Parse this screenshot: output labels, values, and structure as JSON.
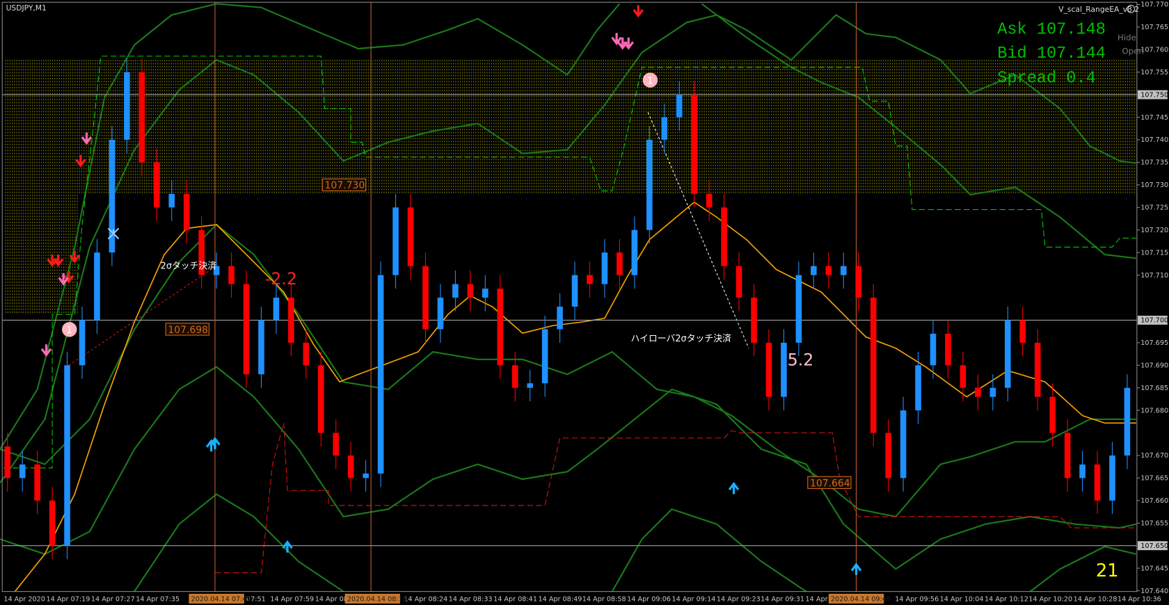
{
  "header": {
    "symbol": "USDJPY,M1",
    "ea_name": "V_scal_RangeEA_v8.2"
  },
  "quote": {
    "ask": "Ask 107.148",
    "bid": "Bid 107.144",
    "spread": "Spread 0.4"
  },
  "buttons": [
    "Hide",
    "Open"
  ],
  "chart_data": {
    "type": "candlestick",
    "ylim": [
      107.64,
      107.77
    ],
    "yticks": [
      {
        "value": 107.77,
        "label": "107.770"
      },
      {
        "value": 107.765,
        "label": "107.765"
      },
      {
        "value": 107.76,
        "label": "107.760"
      },
      {
        "value": 107.755,
        "label": "107.755"
      },
      {
        "value": 107.745,
        "label": "107.745"
      },
      {
        "value": 107.74,
        "label": "107.740"
      },
      {
        "value": 107.735,
        "label": "107.735"
      },
      {
        "value": 107.73,
        "label": "107.730"
      },
      {
        "value": 107.725,
        "label": "107.725"
      },
      {
        "value": 107.72,
        "label": "107.720"
      },
      {
        "value": 107.715,
        "label": "107.715"
      },
      {
        "value": 107.71,
        "label": "107.710"
      },
      {
        "value": 107.695,
        "label": "107.695"
      },
      {
        "value": 107.69,
        "label": "107.690"
      },
      {
        "value": 107.685,
        "label": "107.685"
      },
      {
        "value": 107.68,
        "label": "107.680"
      },
      {
        "value": 107.67,
        "label": "107.670"
      },
      {
        "value": 107.665,
        "label": "107.665"
      },
      {
        "value": 107.66,
        "label": "107.660"
      },
      {
        "value": 107.655,
        "label": "107.655"
      },
      {
        "value": 107.645,
        "label": "107.645"
      },
      {
        "value": 107.64,
        "label": "107.640"
      }
    ],
    "levels": [
      {
        "value": 107.75,
        "label": "107.750"
      },
      {
        "value": 107.7,
        "label": "107.700"
      },
      {
        "value": 107.65,
        "label": "107.650"
      }
    ],
    "x_labels": [
      "14 Apr 2020",
      "14 Apr 07:19",
      "14 Apr 07:27",
      "14 Apr 07:35",
      "07:51",
      "14 Apr 07:59",
      "14 Apr 08",
      "14 Apr 08:24",
      "14 Apr 08:33",
      "14 Apr 08:41",
      "14 Apr 08:49",
      "14 Apr 08:58",
      "14 Apr 09:06",
      "14 Apr 09:14",
      "14 Apr 09:23",
      "14 Apr 09:31",
      "14 Apr",
      "14 Apr 09:56",
      "14 Apr 10:04",
      "14 Apr 10:12",
      "14 Apr 10:20",
      "14 Apr 10:28",
      "14 Apr 10:36"
    ],
    "time_markers": [
      "2020.04.14 07:49",
      "2020.04.14 08:18",
      "2020.04.14 09:49"
    ],
    "colors": {
      "up": "#1e90ff",
      "down": "#ff0000"
    },
    "candles": [
      [
        107.672,
        107.675,
        107.662,
        107.665
      ],
      [
        107.665,
        107.671,
        107.662,
        107.668
      ],
      [
        107.668,
        107.671,
        107.657,
        107.66
      ],
      [
        107.66,
        107.663,
        107.647,
        107.65
      ],
      [
        107.65,
        107.693,
        107.647,
        107.69
      ],
      [
        107.69,
        107.703,
        107.687,
        107.7
      ],
      [
        107.7,
        107.718,
        107.697,
        107.715
      ],
      [
        107.715,
        107.743,
        107.712,
        107.74
      ],
      [
        107.74,
        107.758,
        107.737,
        107.755
      ],
      [
        107.755,
        107.758,
        107.732,
        107.735
      ],
      [
        107.735,
        107.738,
        107.722,
        107.725
      ],
      [
        107.725,
        107.731,
        107.722,
        107.728
      ],
      [
        107.728,
        107.731,
        107.717,
        107.72
      ],
      [
        107.72,
        107.723,
        107.707,
        107.71
      ],
      [
        107.71,
        107.715,
        107.707,
        107.712
      ],
      [
        107.712,
        107.715,
        107.705,
        107.708
      ],
      [
        107.708,
        107.711,
        107.685,
        107.688
      ],
      [
        107.688,
        107.703,
        107.685,
        107.7
      ],
      [
        107.7,
        107.708,
        107.697,
        107.705
      ],
      [
        107.705,
        107.708,
        107.692,
        107.695
      ],
      [
        107.695,
        107.698,
        107.687,
        107.69
      ],
      [
        107.69,
        107.693,
        107.672,
        107.675
      ],
      [
        107.675,
        107.678,
        107.667,
        107.67
      ],
      [
        107.67,
        107.673,
        107.662,
        107.665
      ],
      [
        107.665,
        107.669,
        107.662,
        107.666
      ],
      [
        107.666,
        107.713,
        107.663,
        107.71
      ],
      [
        107.71,
        107.728,
        107.707,
        107.725
      ],
      [
        107.725,
        107.728,
        107.709,
        107.712
      ],
      [
        107.712,
        107.715,
        107.695,
        107.698
      ],
      [
        107.698,
        107.708,
        107.695,
        107.705
      ],
      [
        107.705,
        107.711,
        107.702,
        107.708
      ],
      [
        107.708,
        107.711,
        107.702,
        107.705
      ],
      [
        107.705,
        107.71,
        107.702,
        107.707
      ],
      [
        107.707,
        107.71,
        107.687,
        107.69
      ],
      [
        107.69,
        107.693,
        107.682,
        107.685
      ],
      [
        107.685,
        107.689,
        107.682,
        107.686
      ],
      [
        107.686,
        107.701,
        107.683,
        107.698
      ],
      [
        107.698,
        107.706,
        107.695,
        107.703
      ],
      [
        107.703,
        107.713,
        107.7,
        107.71
      ],
      [
        107.71,
        107.713,
        107.705,
        107.708
      ],
      [
        107.708,
        107.718,
        107.705,
        107.715
      ],
      [
        107.715,
        107.718,
        107.707,
        107.71
      ],
      [
        107.71,
        107.723,
        107.707,
        107.72
      ],
      [
        107.72,
        107.743,
        107.717,
        107.74
      ],
      [
        107.74,
        107.748,
        107.737,
        107.745
      ],
      [
        107.745,
        107.753,
        107.742,
        107.75
      ],
      [
        107.75,
        107.753,
        107.725,
        107.728
      ],
      [
        107.728,
        107.731,
        107.722,
        107.725
      ],
      [
        107.725,
        107.728,
        107.709,
        107.712
      ],
      [
        107.712,
        107.715,
        107.702,
        107.705
      ],
      [
        107.705,
        107.708,
        107.692,
        107.695
      ],
      [
        107.695,
        107.698,
        107.68,
        107.683
      ],
      [
        107.683,
        107.698,
        107.68,
        107.695
      ],
      [
        107.695,
        107.713,
        107.692,
        107.71
      ],
      [
        107.71,
        107.715,
        107.707,
        107.712
      ],
      [
        107.712,
        107.715,
        107.707,
        107.71
      ],
      [
        107.71,
        107.715,
        107.707,
        107.712
      ],
      [
        107.712,
        107.715,
        107.702,
        107.705
      ],
      [
        107.705,
        107.708,
        107.672,
        107.675
      ],
      [
        107.675,
        107.678,
        107.662,
        107.665
      ],
      [
        107.665,
        107.683,
        107.662,
        107.68
      ],
      [
        107.68,
        107.693,
        107.677,
        107.69
      ],
      [
        107.69,
        107.7,
        107.687,
        107.697
      ],
      [
        107.697,
        107.7,
        107.687,
        107.69
      ],
      [
        107.69,
        107.693,
        107.682,
        107.685
      ],
      [
        107.685,
        107.688,
        107.68,
        107.683
      ],
      [
        107.683,
        107.688,
        107.68,
        107.685
      ],
      [
        107.685,
        107.703,
        107.682,
        107.7
      ],
      [
        107.7,
        107.703,
        107.692,
        107.695
      ],
      [
        107.695,
        107.698,
        107.68,
        107.683
      ],
      [
        107.683,
        107.686,
        107.672,
        107.675
      ],
      [
        107.675,
        107.678,
        107.662,
        107.665
      ],
      [
        107.665,
        107.671,
        107.662,
        107.668
      ],
      [
        107.668,
        107.671,
        107.657,
        107.66
      ],
      [
        107.66,
        107.673,
        107.657,
        107.67
      ],
      [
        107.67,
        107.688,
        107.667,
        107.685
      ]
    ],
    "annotations": {
      "texts": [
        "2σタッチ決済",
        "ハイローバ2σタッチ決済"
      ],
      "pips": [
        -2.2,
        5.2
      ],
      "count": 21,
      "trade_markers": [
        1,
        1
      ],
      "price_labels": [
        {
          "value": 107.73,
          "label": "107.730"
        },
        {
          "value": 107.698,
          "label": "107.698"
        },
        {
          "value": 107.664,
          "label": "107.664"
        }
      ]
    }
  }
}
